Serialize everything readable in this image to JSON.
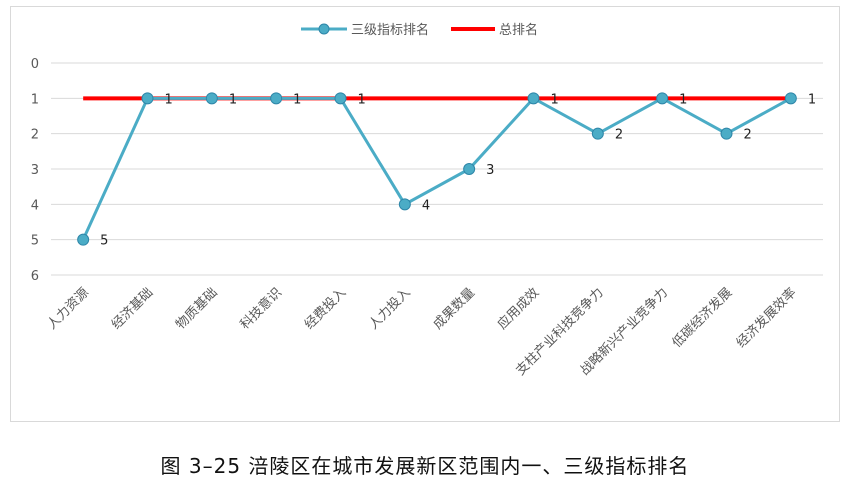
{
  "caption": "图 3–25    涪陵区在城市发展新区范围内一、三级指标排名",
  "chart_data": {
    "type": "line",
    "categories": [
      "人力资源",
      "经济基础",
      "物质基础",
      "科技意识",
      "经费投入",
      "人力投入",
      "成果数量",
      "应用成效",
      "支柱产业科技竞争力",
      "战略新兴产业竞争力",
      "低碳经济发展",
      "经济发展效率"
    ],
    "series": [
      {
        "name": "三级指标排名",
        "values": [
          5,
          1,
          1,
          1,
          1,
          4,
          3,
          1,
          2,
          1,
          2,
          1
        ],
        "color": "#4BACC6",
        "marker": "circle"
      },
      {
        "name": "总排名",
        "values": [
          1,
          1,
          1,
          1,
          1,
          1,
          1,
          1,
          1,
          1,
          1,
          1
        ],
        "color": "#FF0000"
      }
    ],
    "y_ticks": [
      "0",
      "1",
      "2",
      "3",
      "4",
      "5",
      "6"
    ],
    "ylim": [
      0,
      6
    ],
    "y_reversed": true,
    "grid": true,
    "legend_position": "top-center",
    "data_labels": [
      "5",
      "1",
      "1",
      "1",
      "1",
      "4",
      "3",
      "1",
      "2",
      "1",
      "2",
      "1"
    ]
  }
}
